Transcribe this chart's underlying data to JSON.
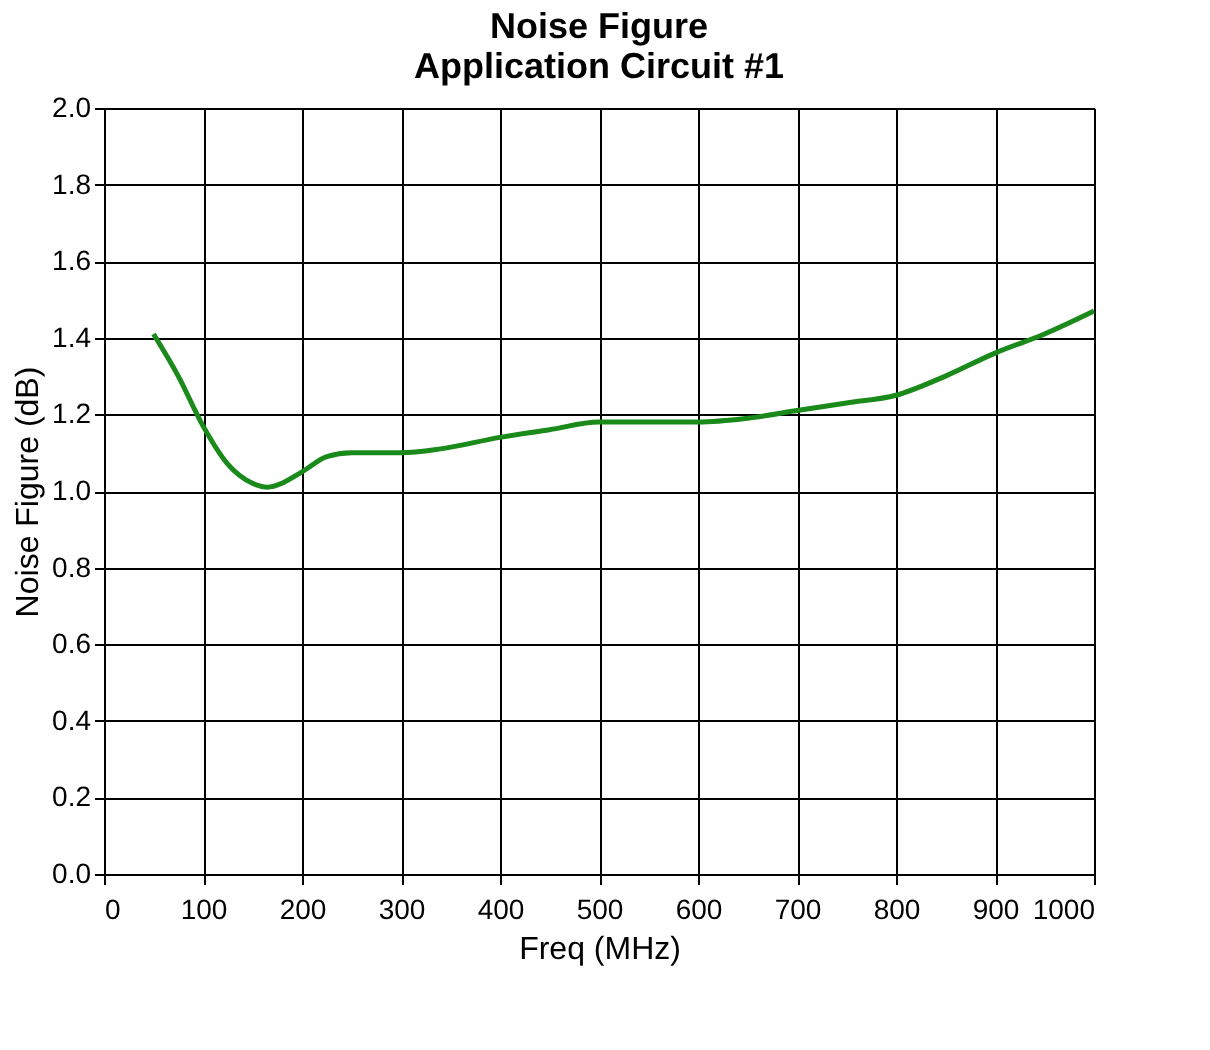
{
  "chart_data": {
    "type": "line",
    "title": [
      "Noise Figure",
      "Application Circuit #1"
    ],
    "xlabel": "Freq (MHz)",
    "ylabel": "Noise Figure (dB)",
    "xlim": [
      0,
      1000
    ],
    "xticks": [
      0,
      100,
      200,
      300,
      400,
      500,
      600,
      700,
      800,
      900,
      1000
    ],
    "ylim": [
      0,
      2
    ],
    "yticks": [
      {
        "value": 0,
        "label": "0.0"
      },
      {
        "value": 0.2,
        "label": "0.2"
      },
      {
        "value": 0.4,
        "label": "0.4"
      },
      {
        "value": 0.6,
        "label": "0.6"
      },
      {
        "value": 0.8,
        "label": "0.8"
      },
      {
        "value": 1,
        "label": "1.0"
      },
      {
        "value": 1.2,
        "label": "1.2"
      },
      {
        "value": 1.4,
        "label": "1.4"
      },
      {
        "value": 1.6,
        "label": "1.6"
      },
      {
        "value": 1.8,
        "label": "1.8"
      },
      {
        "value": 2,
        "label": "2.0"
      }
    ],
    "grid": true,
    "series": [
      {
        "color": "#1a8a1a",
        "x": [
          50,
          75,
          100,
          125,
          150,
          165,
          200,
          225,
          250,
          300,
          340,
          400,
          450,
          500,
          550,
          600,
          650,
          700,
          750,
          800,
          850,
          900,
          950,
          1000
        ],
        "values": [
          1.41,
          1.3,
          1.17,
          1.07,
          1.02,
          1.01,
          1.05,
          1.09,
          1.1,
          1.1,
          1.11,
          1.14,
          1.16,
          1.18,
          1.18,
          1.18,
          1.19,
          1.21,
          1.23,
          1.25,
          1.3,
          1.36,
          1.41,
          1.47
        ]
      }
    ]
  }
}
